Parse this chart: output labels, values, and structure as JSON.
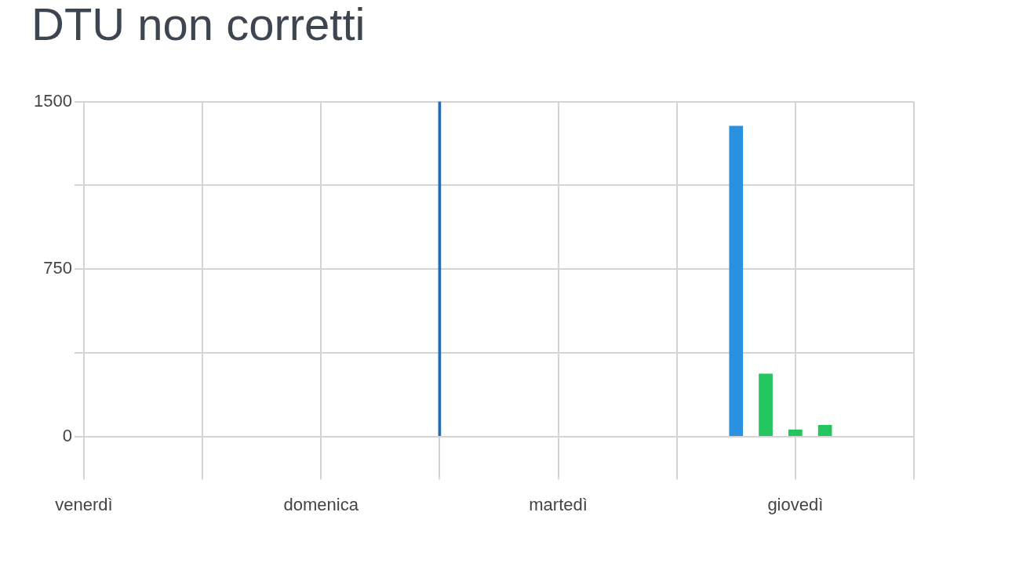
{
  "chart_data": {
    "type": "bar",
    "title": "DTU non corretti",
    "categories": [
      "venerdì",
      null,
      null,
      null,
      null,
      null,
      null,
      null,
      "domenica",
      null,
      null,
      null,
      null,
      null,
      null,
      null,
      "martedì",
      null,
      null,
      null,
      null,
      null,
      null,
      null,
      "giovedì",
      null,
      null,
      null,
      null
    ],
    "ylim": [
      0,
      1500
    ],
    "yticks": [
      0,
      {
        "value": 375,
        "label": null
      },
      750,
      {
        "value": 1125,
        "label": null
      },
      1500
    ],
    "series": [
      {
        "color": "#1a6fc0",
        "values": [
          null,
          null,
          null,
          null,
          null,
          null,
          null,
          null,
          null,
          null,
          null,
          null,
          1500,
          null,
          null,
          null,
          null,
          null,
          null,
          null,
          null,
          null,
          null,
          null,
          null,
          null,
          null,
          null,
          null
        ]
      },
      {
        "color": "#2a90e0",
        "values": [
          null,
          null,
          null,
          null,
          null,
          null,
          null,
          null,
          null,
          null,
          null,
          null,
          null,
          null,
          null,
          null,
          null,
          null,
          null,
          null,
          null,
          null,
          1390,
          null,
          null,
          null,
          null,
          null,
          null
        ]
      },
      {
        "color": "#22c55e",
        "values": [
          null,
          null,
          null,
          null,
          null,
          null,
          null,
          null,
          null,
          null,
          null,
          null,
          null,
          null,
          null,
          null,
          null,
          null,
          null,
          null,
          null,
          null,
          null,
          280,
          30,
          50,
          null,
          null,
          null
        ]
      }
    ],
    "grid": true,
    "legend": false
  }
}
